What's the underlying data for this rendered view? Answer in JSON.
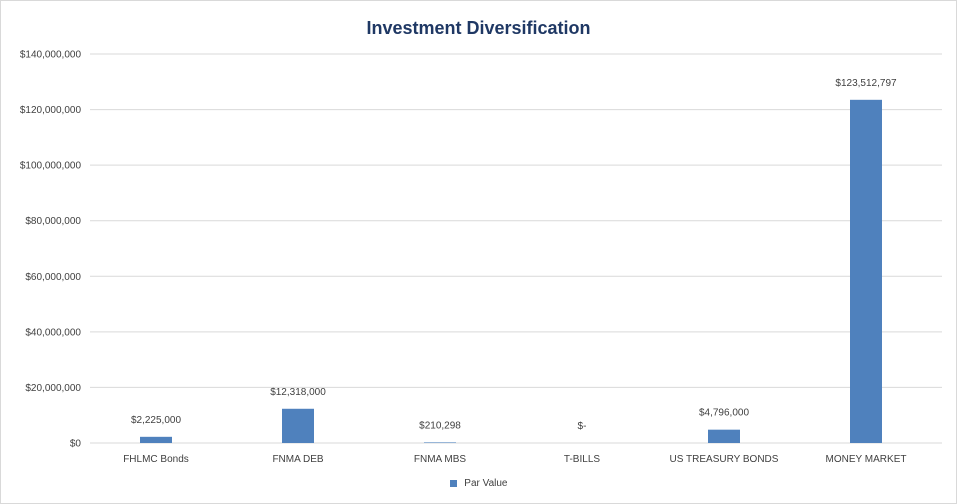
{
  "chart_data": {
    "type": "bar",
    "title": "Investment Diversification",
    "categories": [
      "FHLMC Bonds",
      "FNMA DEB",
      "FNMA MBS",
      "T-BILLS",
      "US TREASURY BONDS",
      "MONEY MARKET"
    ],
    "series": [
      {
        "name": "Par Value",
        "values": [
          2225000,
          12318000,
          210298,
          0,
          4796000,
          123512797
        ],
        "data_labels": [
          "$2,225,000",
          "$12,318,000",
          "$210,298",
          "$-",
          "$4,796,000",
          "$123,512,797"
        ]
      }
    ],
    "ylim": [
      0,
      140000000
    ],
    "yticks": [
      0,
      20000000,
      40000000,
      60000000,
      80000000,
      100000000,
      120000000,
      140000000
    ],
    "ytick_labels": [
      "$0",
      "$20,000,000",
      "$40,000,000",
      "$60,000,000",
      "$80,000,000",
      "$100,000,000",
      "$120,000,000",
      "$140,000,000"
    ],
    "xlabel": "",
    "ylabel": "",
    "grid": true,
    "legend": "bottom",
    "colors": {
      "bar": "#4f81bd",
      "grid": "#d9d9d9",
      "title": "#1f3864",
      "text": "#404040"
    }
  }
}
